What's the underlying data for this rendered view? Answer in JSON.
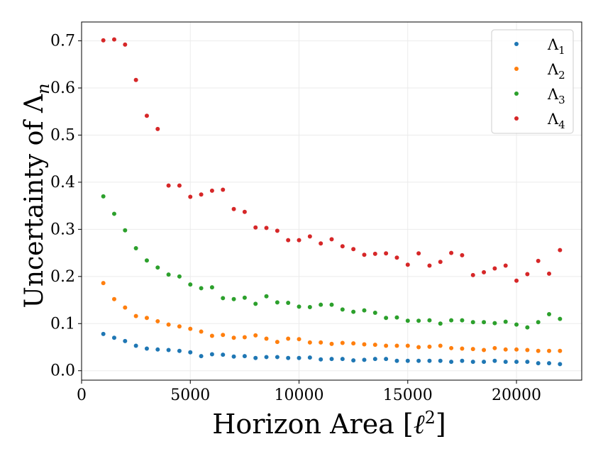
{
  "chart_data": {
    "type": "scatter",
    "xlabel": "Horizon Area [ℓ²]",
    "ylabel": "Uncertainty of Λn",
    "xlim": [
      0,
      23000
    ],
    "ylim": [
      -0.02,
      0.74
    ],
    "xticks": [
      0,
      5000,
      10000,
      15000,
      20000
    ],
    "yticks": [
      0.0,
      0.1,
      0.2,
      0.3,
      0.4,
      0.5,
      0.6,
      0.7
    ],
    "grid": true,
    "legend_position": "top-right",
    "x": [
      1000,
      1500,
      2000,
      2500,
      3000,
      3500,
      4000,
      4500,
      5000,
      5500,
      6000,
      6500,
      7000,
      7500,
      8000,
      8500,
      9000,
      9500,
      10000,
      10500,
      11000,
      11500,
      12000,
      12500,
      13000,
      13500,
      14000,
      14500,
      15000,
      15500,
      16000,
      16500,
      17000,
      17500,
      18000,
      18500,
      19000,
      19500,
      20000,
      20500,
      21000,
      21500,
      22000
    ],
    "series": [
      {
        "name": "Λ1",
        "base": "Λ",
        "sub": "1",
        "color": "#1f77b4",
        "values": [
          0.078,
          0.07,
          0.063,
          0.053,
          0.047,
          0.045,
          0.044,
          0.042,
          0.039,
          0.031,
          0.035,
          0.034,
          0.03,
          0.031,
          0.027,
          0.029,
          0.029,
          0.027,
          0.027,
          0.028,
          0.024,
          0.025,
          0.025,
          0.022,
          0.023,
          0.025,
          0.025,
          0.021,
          0.021,
          0.021,
          0.021,
          0.021,
          0.019,
          0.021,
          0.019,
          0.019,
          0.021,
          0.019,
          0.019,
          0.019,
          0.016,
          0.016,
          0.014
        ]
      },
      {
        "name": "Λ2",
        "base": "Λ",
        "sub": "2",
        "color": "#ff7f0e",
        "values": [
          0.186,
          0.152,
          0.134,
          0.116,
          0.112,
          0.105,
          0.098,
          0.094,
          0.089,
          0.083,
          0.074,
          0.076,
          0.07,
          0.071,
          0.075,
          0.068,
          0.061,
          0.068,
          0.067,
          0.06,
          0.06,
          0.057,
          0.059,
          0.058,
          0.056,
          0.055,
          0.053,
          0.053,
          0.053,
          0.05,
          0.051,
          0.053,
          0.048,
          0.047,
          0.046,
          0.044,
          0.048,
          0.045,
          0.045,
          0.044,
          0.042,
          0.042,
          0.042
        ]
      },
      {
        "name": "Λ3",
        "base": "Λ",
        "sub": "3",
        "color": "#2ca02c",
        "values": [
          0.37,
          0.333,
          0.298,
          0.26,
          0.234,
          0.219,
          0.204,
          0.2,
          0.183,
          0.175,
          0.177,
          0.154,
          0.152,
          0.155,
          0.142,
          0.158,
          0.145,
          0.144,
          0.136,
          0.135,
          0.14,
          0.14,
          0.13,
          0.125,
          0.128,
          0.123,
          0.112,
          0.113,
          0.106,
          0.106,
          0.107,
          0.1,
          0.107,
          0.107,
          0.103,
          0.103,
          0.101,
          0.104,
          0.098,
          0.092,
          0.103,
          0.12,
          0.11
        ]
      },
      {
        "name": "Λ4",
        "base": "Λ",
        "sub": "4",
        "color": "#d62728",
        "values": [
          0.701,
          0.703,
          0.692,
          0.617,
          0.541,
          0.513,
          0.393,
          0.393,
          0.369,
          0.374,
          0.382,
          0.384,
          0.343,
          0.337,
          0.304,
          0.303,
          0.297,
          0.277,
          0.277,
          0.285,
          0.27,
          0.279,
          0.264,
          0.258,
          0.246,
          0.248,
          0.249,
          0.24,
          0.225,
          0.249,
          0.223,
          0.231,
          0.25,
          0.245,
          0.203,
          0.209,
          0.217,
          0.223,
          0.191,
          0.205,
          0.233,
          0.206,
          0.256
        ]
      }
    ]
  }
}
